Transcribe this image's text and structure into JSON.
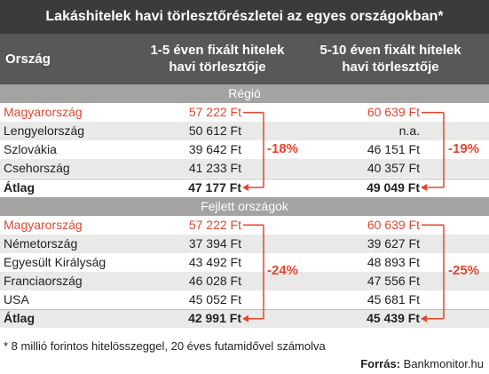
{
  "title": "Lakáshitelek havi törlesztőrészletei az egyes országokban*",
  "header": [
    "Ország",
    "1-5 éven fixált hitelek havi törlesztője",
    "5-10 éven fixált hitelek havi törlesztője"
  ],
  "sections": [
    {
      "title": "Régió",
      "rows": [
        [
          "Magyarország",
          "57 222 Ft",
          "60 639 Ft"
        ],
        [
          "Lengyelország",
          "50 612 Ft",
          "n.a."
        ],
        [
          "Szlovákia",
          "39 642 Ft",
          "46 151 Ft"
        ],
        [
          "Csehország",
          "41 233 Ft",
          "40 357 Ft"
        ],
        [
          "Átlag",
          "47 177 Ft",
          "49 049 Ft"
        ]
      ],
      "differences": [
        "-18%",
        "-19%"
      ]
    },
    {
      "title": "Fejlett országok",
      "rows": [
        [
          "Magyarország",
          "57 222 Ft",
          "60 639 Ft"
        ],
        [
          "Németország",
          "37 394 Ft",
          "39 627 Ft"
        ],
        [
          "Egyesült Királyság",
          "43 492 Ft",
          "48 893 Ft"
        ],
        [
          "Franciaország",
          "46 028 Ft",
          "47 556 Ft"
        ],
        [
          "USA",
          "45 052 Ft",
          "45 681 Ft"
        ],
        [
          "Átlag",
          "42 991 Ft",
          "45 439 Ft"
        ]
      ],
      "differences": [
        "-24%",
        "-25%"
      ]
    }
  ],
  "footnote": "* 8 millió forintos hitelösszeggel, 20 éves futamidővel számolva",
  "source": {
    "label": "Forrás:",
    "text": "Bankmonitor.hu"
  }
}
